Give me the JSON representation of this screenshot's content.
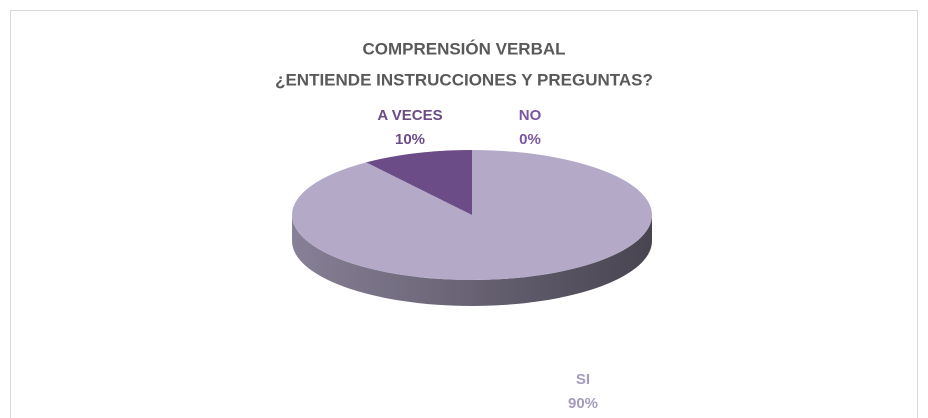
{
  "chart_data": {
    "type": "pie",
    "title": "COMPRENSIÓN VERBAL",
    "subtitle": "¿ENTIENDE INSTRUCCIONES Y PREGUNTAS?",
    "categories": [
      "SI",
      "A VECES",
      "NO"
    ],
    "values": [
      90,
      10,
      0
    ],
    "value_labels": [
      "90%",
      "10%",
      "0%"
    ],
    "colors": [
      "#b4aac8",
      "#6b4c86",
      "#8a7aa6"
    ]
  }
}
